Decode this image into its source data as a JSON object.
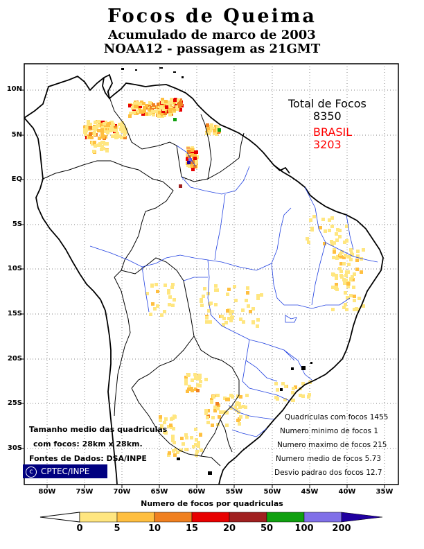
{
  "title": {
    "line1": "Focos de Queima",
    "line2": "Acumulado de marco de 2003",
    "line3": "NOAA12 - passagem as 21GMT"
  },
  "totals": {
    "label": "Total de Focos",
    "total_value": "8350",
    "country_label": "BRASIL",
    "country_value": "3203",
    "country_color": "#ff0000"
  },
  "axes": {
    "lat_labels": [
      "10N",
      "5N",
      "EQ",
      "5S",
      "10S",
      "15S",
      "20S",
      "25S",
      "30S"
    ],
    "lon_labels": [
      "80W",
      "75W",
      "70W",
      "65W",
      "60W",
      "55W",
      "50W",
      "45W",
      "40W",
      "35W"
    ]
  },
  "stats": [
    "Quadriculas com focos 1455",
    "Numero minimo de focos 1",
    "Numero maximo de focos 215",
    "Numero medio de focos 5.73",
    "Desvio padrao dos focos 12.7"
  ],
  "notes": {
    "line1": "Tamanho medio das quadriculas",
    "line2": "com focos: 28km x 28km.",
    "line3": "Fontes de Dados: DSA/INPE"
  },
  "credit": "CPTEC/INPE",
  "legend": {
    "title": "Numero de focos por quadriculas",
    "labels": [
      "0",
      "5",
      "10",
      "15",
      "20",
      "50",
      "100",
      "200"
    ],
    "colors": [
      "#ffe680",
      "#ffbf40",
      "#f08020",
      "#e80000",
      "#a02020",
      "#10a010",
      "#8070e8",
      "#2000a0"
    ]
  },
  "fire_levels": [
    "#ffe680",
    "#ffbf40",
    "#f08020",
    "#e80000",
    "#a02020",
    "#10a010",
    "#8070e8",
    "#2000a0"
  ]
}
